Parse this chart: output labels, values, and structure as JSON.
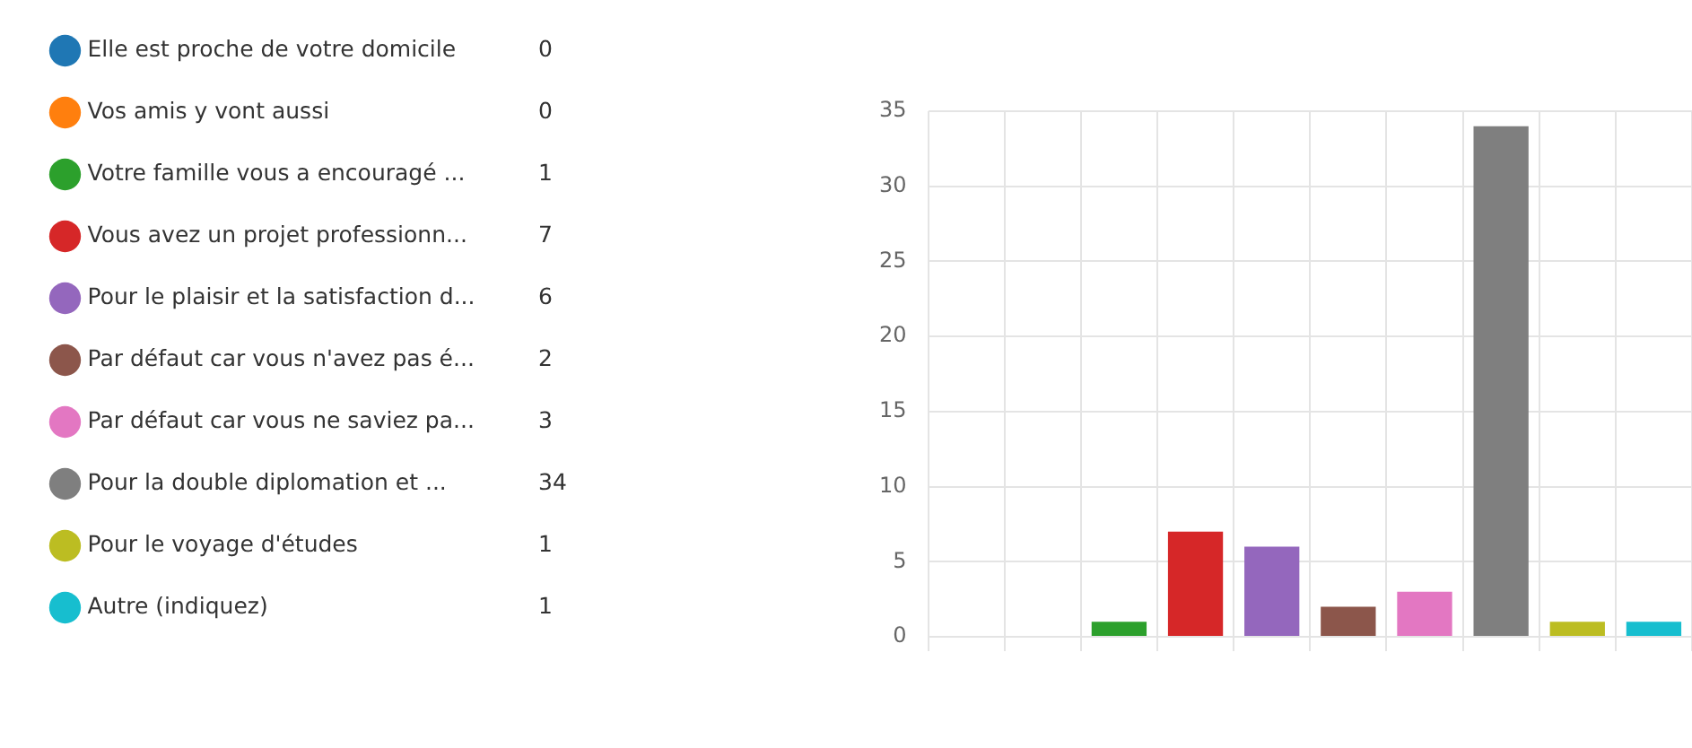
{
  "chart_data": {
    "type": "bar",
    "categories": [
      null,
      null,
      null,
      null,
      null,
      null,
      null,
      null,
      null,
      null
    ],
    "series": [
      {
        "name": "Elle est proche de votre domicile",
        "color": "#1f77b4",
        "values": [
          0,
          null,
          null,
          null,
          null,
          null,
          null,
          null,
          null,
          null
        ]
      },
      {
        "name": "Vos amis y vont aussi",
        "color": "#ff7f0e",
        "values": [
          null,
          0,
          null,
          null,
          null,
          null,
          null,
          null,
          null,
          null
        ]
      },
      {
        "name": "Votre famille vous a encouragé ...",
        "color": "#2ca02c",
        "values": [
          null,
          null,
          1,
          null,
          null,
          null,
          null,
          null,
          null,
          null
        ]
      },
      {
        "name": "Vous avez un projet professionn...",
        "color": "#d62728",
        "values": [
          null,
          null,
          null,
          7,
          null,
          null,
          null,
          null,
          null,
          null
        ]
      },
      {
        "name": "Pour le plaisir et la satisfaction d...",
        "color": "#9467bd",
        "values": [
          null,
          null,
          null,
          null,
          6,
          null,
          null,
          null,
          null,
          null
        ]
      },
      {
        "name": "Par défaut car vous n'avez pas é...",
        "color": "#8c564b",
        "values": [
          null,
          null,
          null,
          null,
          null,
          2,
          null,
          null,
          null,
          null
        ]
      },
      {
        "name": "Par défaut car vous ne saviez pa...",
        "color": "#e377c2",
        "values": [
          null,
          null,
          null,
          null,
          null,
          null,
          3,
          null,
          null,
          null
        ]
      },
      {
        "name": "Pour la double diplomation et ...",
        "color": "#7f7f7f",
        "values": [
          null,
          null,
          null,
          null,
          null,
          null,
          null,
          34,
          null,
          null
        ]
      },
      {
        "name": "Pour le voyage d'études",
        "color": "#bcbd22",
        "values": [
          null,
          null,
          null,
          null,
          null,
          null,
          null,
          null,
          1,
          null
        ]
      },
      {
        "name": "Autre (indiquez)",
        "color": "#17becf",
        "values": [
          null,
          null,
          null,
          null,
          null,
          null,
          null,
          null,
          null,
          1
        ]
      }
    ],
    "ylim": [
      0,
      35
    ],
    "yticks": [
      0,
      5,
      10,
      15,
      20,
      25,
      30,
      35
    ],
    "annotations": [
      "0",
      "0",
      "1",
      "7",
      "6",
      "2",
      "3",
      "34",
      "1",
      "1"
    ],
    "grid": true,
    "legend": "left",
    "tick_labels": "y"
  }
}
